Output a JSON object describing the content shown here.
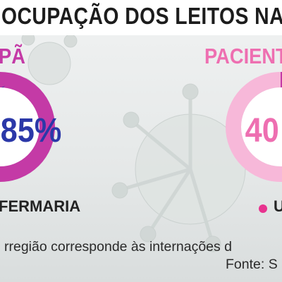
{
  "title": "OCUPAÇÃO DOS LEITOS NA SAN",
  "colors": {
    "magenta": "#c43aa6",
    "navy": "#2b38a8",
    "pink": "#ee6fb1",
    "track": "#f7b8d9"
  },
  "left_panel": {
    "header": "PÃ",
    "percent_label": "85%",
    "legend": "FERMARIA"
  },
  "right_panel": {
    "header": "PACIENTE",
    "percent_label": "40",
    "legend": "U"
  },
  "note": "rregião corresponde às internações d",
  "source": "Fonte: S",
  "chart_data": [
    {
      "type": "pie",
      "subtype": "donut",
      "values": [
        85,
        15
      ],
      "labels": [
        "",
        ""
      ],
      "colors": [
        "#c43aa6",
        "#2b38a8"
      ],
      "center_label": "85%"
    },
    {
      "type": "pie",
      "subtype": "donut",
      "values": [
        40,
        60
      ],
      "labels": [
        "",
        ""
      ],
      "colors": [
        "#c43aa6",
        "#f7b8d9"
      ],
      "center_label": "40"
    }
  ]
}
